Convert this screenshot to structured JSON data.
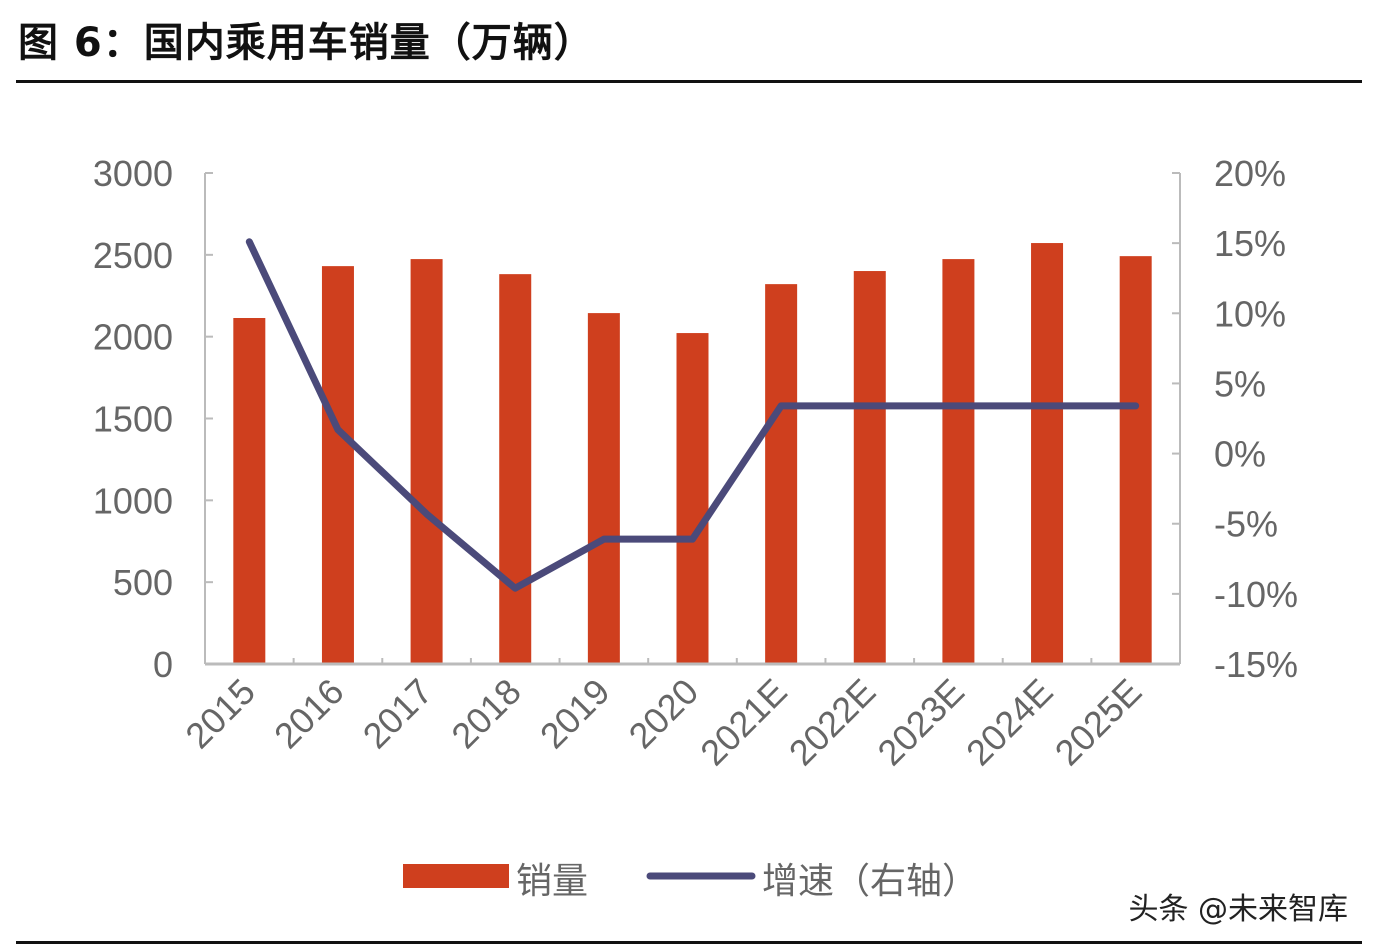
{
  "title": "图 6：国内乘用车销量（万辆）",
  "watermark": "头条 @未来智库",
  "colors": {
    "bar": "#CF3F1E",
    "line": "#4B4A7A"
  },
  "chart_data": {
    "type": "bar+line",
    "title": "图 6：国内乘用车销量（万辆）",
    "categories": [
      "2015",
      "2016",
      "2017",
      "2018",
      "2019",
      "2020",
      "2021E",
      "2022E",
      "2023E",
      "2024E",
      "2025E"
    ],
    "series": [
      {
        "name": "销量",
        "type": "bar",
        "axis": "left",
        "values": [
          2114,
          2431,
          2474,
          2382,
          2144,
          2022,
          2321,
          2401,
          2474,
          2572,
          2492
        ]
      },
      {
        "name": "增速（右轴）",
        "type": "line",
        "axis": "right",
        "values": [
          15.1,
          1.7,
          -4.3,
          -9.6,
          -6.1,
          -6.1,
          3.4,
          3.4,
          3.4,
          3.4,
          3.4
        ]
      }
    ],
    "left_axis": {
      "ylim": [
        0,
        3000
      ],
      "ticks": [
        "0",
        "500",
        "1000",
        "1500",
        "2000",
        "2500",
        "3000"
      ]
    },
    "right_axis": {
      "ylim": [
        -15,
        20
      ],
      "unit": "%",
      "ticks": [
        "-15%",
        "-10%",
        "-5%",
        "0%",
        "5%",
        "10%",
        "15%",
        "20%"
      ]
    },
    "grid": false,
    "legend": "bottom"
  }
}
